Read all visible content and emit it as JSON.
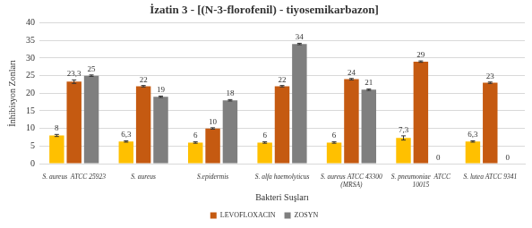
{
  "chart_data": {
    "type": "bar",
    "title": "İzatin 3 - [(N-3-florofenil) - tiyosemikarbazon]",
    "x_label": "Bakteri Suşları",
    "y_label": "İnhibisyon Zonları",
    "categories": [
      "S. aureus  ATCC 25923",
      "S. aureus",
      "S.epidermis",
      "S. alfa haemolyticus",
      "S. aureus ATCC 43300 (MRSA)",
      "S. pneumoniae  ATCC 10015",
      "S. lutea ATCC 9341"
    ],
    "series": [
      {
        "color": "#FFC000",
        "values": [
          8,
          6.3,
          6,
          6,
          6,
          7.3,
          6.3
        ],
        "value_labels": [
          "8",
          "6,3",
          "6",
          "6",
          "6",
          "7,3",
          "6,3"
        ],
        "errors": [
          0.3,
          0.2,
          0.2,
          0.2,
          0.2,
          0.6,
          0.2
        ]
      },
      {
        "name": "LEVOFLOXACIN",
        "color": "#C55A11",
        "values": [
          23.3,
          22,
          10,
          22,
          24,
          29,
          23
        ],
        "value_labels": [
          "23,3",
          "22",
          "10",
          "22",
          "24",
          "29",
          "23"
        ],
        "errors": [
          0.5,
          0.2,
          0.2,
          0.2,
          0.2,
          0.2,
          0.2
        ]
      },
      {
        "name": "ZOSYN",
        "color": "#7F7F7F",
        "values": [
          25,
          19,
          18,
          34,
          21,
          0,
          0
        ],
        "value_labels": [
          "25",
          "19",
          "18",
          "34",
          "21",
          "0",
          "0"
        ],
        "errors": [
          0.2,
          0.2,
          0.2,
          0.2,
          0.2,
          0,
          0
        ]
      }
    ],
    "ylim": [
      0,
      40
    ],
    "yticks": [
      0,
      5,
      10,
      15,
      20,
      25,
      30,
      35,
      40
    ],
    "grid": true,
    "legend": "bottom",
    "data_labels": true
  }
}
